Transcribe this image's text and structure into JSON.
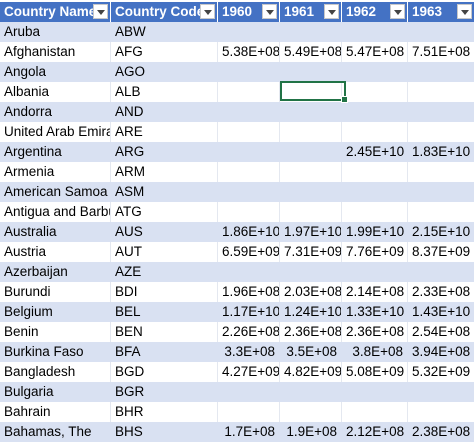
{
  "headers": [
    "Country Name",
    "Country Code",
    "1960",
    "1961",
    "1962",
    "1963"
  ],
  "rows": [
    {
      "name": "Aruba",
      "code": "ABW",
      "v1960": "",
      "v1961": "",
      "v1962": "",
      "v1963": ""
    },
    {
      "name": "Afghanistan",
      "code": "AFG",
      "v1960": "5.38E+08",
      "v1961": "5.49E+08",
      "v1962": "5.47E+08",
      "v1963": "7.51E+08"
    },
    {
      "name": "Angola",
      "code": "AGO",
      "v1960": "",
      "v1961": "",
      "v1962": "",
      "v1963": ""
    },
    {
      "name": "Albania",
      "code": "ALB",
      "v1960": "",
      "v1961": "",
      "v1962": "",
      "v1963": ""
    },
    {
      "name": "Andorra",
      "code": "AND",
      "v1960": "",
      "v1961": "",
      "v1962": "",
      "v1963": ""
    },
    {
      "name": "United Arab Emira",
      "code": "ARE",
      "v1960": "",
      "v1961": "",
      "v1962": "",
      "v1963": ""
    },
    {
      "name": "Argentina",
      "code": "ARG",
      "v1960": "",
      "v1961": "",
      "v1962": "2.45E+10",
      "v1963": "1.83E+10"
    },
    {
      "name": "Armenia",
      "code": "ARM",
      "v1960": "",
      "v1961": "",
      "v1962": "",
      "v1963": ""
    },
    {
      "name": "American Samoa",
      "code": "ASM",
      "v1960": "",
      "v1961": "",
      "v1962": "",
      "v1963": ""
    },
    {
      "name": "Antigua and Barbu",
      "code": "ATG",
      "v1960": "",
      "v1961": "",
      "v1962": "",
      "v1963": ""
    },
    {
      "name": "Australia",
      "code": "AUS",
      "v1960": "1.86E+10",
      "v1961": "1.97E+10",
      "v1962": "1.99E+10",
      "v1963": "2.15E+10"
    },
    {
      "name": "Austria",
      "code": "AUT",
      "v1960": "6.59E+09",
      "v1961": "7.31E+09",
      "v1962": "7.76E+09",
      "v1963": "8.37E+09"
    },
    {
      "name": "Azerbaijan",
      "code": "AZE",
      "v1960": "",
      "v1961": "",
      "v1962": "",
      "v1963": ""
    },
    {
      "name": "Burundi",
      "code": "BDI",
      "v1960": "1.96E+08",
      "v1961": "2.03E+08",
      "v1962": "2.14E+08",
      "v1963": "2.33E+08"
    },
    {
      "name": "Belgium",
      "code": "BEL",
      "v1960": "1.17E+10",
      "v1961": "1.24E+10",
      "v1962": "1.33E+10",
      "v1963": "1.43E+10"
    },
    {
      "name": "Benin",
      "code": "BEN",
      "v1960": "2.26E+08",
      "v1961": "2.36E+08",
      "v1962": "2.36E+08",
      "v1963": "2.54E+08"
    },
    {
      "name": "Burkina Faso",
      "code": "BFA",
      "v1960": "3.3E+08",
      "v1961": "3.5E+08",
      "v1962": "3.8E+08",
      "v1963": "3.94E+08"
    },
    {
      "name": "Bangladesh",
      "code": "BGD",
      "v1960": "4.27E+09",
      "v1961": "4.82E+09",
      "v1962": "5.08E+09",
      "v1963": "5.32E+09"
    },
    {
      "name": "Bulgaria",
      "code": "BGR",
      "v1960": "",
      "v1961": "",
      "v1962": "",
      "v1963": ""
    },
    {
      "name": "Bahrain",
      "code": "BHR",
      "v1960": "",
      "v1961": "",
      "v1962": "",
      "v1963": ""
    },
    {
      "name": "Bahamas, The",
      "code": "BHS",
      "v1960": "1.7E+08",
      "v1961": "1.9E+08",
      "v1962": "2.12E+08",
      "v1963": "2.38E+08"
    }
  ],
  "filter_icon": "dropdown-arrow-icon",
  "colors": {
    "header": "#4472c4",
    "band": "#d9e1f2",
    "selection": "#217346"
  }
}
